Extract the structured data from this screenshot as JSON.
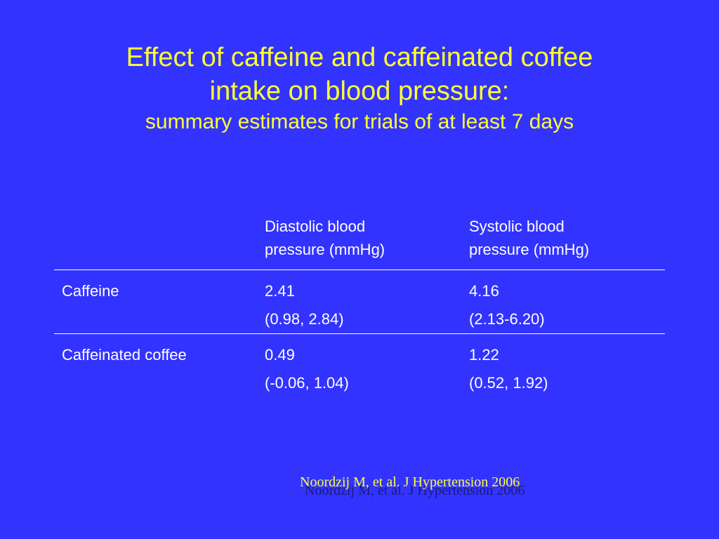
{
  "slide": {
    "title_line1": "Effect of caffeine and caffeinated coffee",
    "title_line2": "intake on blood pressure:",
    "subtitle": "summary estimates for trials of at least 7 days"
  },
  "table": {
    "columns": [
      {
        "line1": "",
        "line2": ""
      },
      {
        "line1": "Diastolic blood",
        "line2": "pressure (mmHg)"
      },
      {
        "line1": "Systolic blood",
        "line2": "pressure (mmHg)"
      }
    ],
    "rows": [
      {
        "label": "Caffeine",
        "diastolic_estimate": "2.41",
        "diastolic_ci": "(0.98, 2.84)",
        "systolic_estimate": "4.16",
        "systolic_ci": "(2.13-6.20)"
      },
      {
        "label": "Caffeinated coffee",
        "diastolic_estimate": "0.49",
        "diastolic_ci": "(-0.06, 1.04)",
        "systolic_estimate": "1.22",
        "systolic_ci": "(0.52, 1.92)"
      }
    ]
  },
  "citation": "Noordzij M, et al. J Hypertension 2006",
  "colors": {
    "background": "#3333ff",
    "title": "#ffff33",
    "text": "#ffffff"
  }
}
